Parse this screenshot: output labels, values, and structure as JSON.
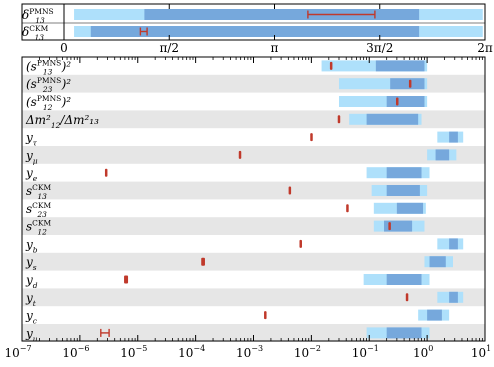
{
  "chart_data": [
    {
      "type": "range",
      "panel": "phase",
      "xlim": [
        0,
        6.2832
      ],
      "x_ticks": [
        {
          "value": 0,
          "label": "0"
        },
        {
          "value": 1.5708,
          "label": "π/2"
        },
        {
          "value": 3.1416,
          "label": "π"
        },
        {
          "value": 4.7124,
          "label": "3π/2"
        },
        {
          "value": 6.2832,
          "label": "2π"
        }
      ],
      "rows": [
        {
          "label": "δ",
          "sub": "13",
          "sup": "PMNS",
          "outer": [
            0.15,
            6.25
          ],
          "inner": [
            1.2,
            5.3
          ],
          "point": {
            "lo": 3.64,
            "hi": 4.64
          }
        },
        {
          "label": "δ",
          "sub": "13",
          "sup": "CKM",
          "outer": [
            0.15,
            6.25
          ],
          "inner": [
            0.4,
            5.3
          ],
          "point": {
            "lo": 1.14,
            "hi": 1.24
          }
        }
      ],
      "colors": {
        "outer": "#aee0fb",
        "inner": "#76a8dc",
        "point": "#c0392b",
        "band": "#e6e6e6"
      }
    },
    {
      "type": "range",
      "panel": "log",
      "xscale": "log",
      "xlim": [
        1e-07,
        10
      ],
      "x_ticks": [
        {
          "value": 1e-07,
          "label": "10",
          "exp": "−7"
        },
        {
          "value": 1e-06,
          "label": "10",
          "exp": "−6"
        },
        {
          "value": 1e-05,
          "label": "10",
          "exp": "−5"
        },
        {
          "value": 0.0001,
          "label": "10",
          "exp": "−4"
        },
        {
          "value": 0.001,
          "label": "10",
          "exp": "−3"
        },
        {
          "value": 0.01,
          "label": "10",
          "exp": "−2"
        },
        {
          "value": 0.1,
          "label": "10",
          "exp": "−1"
        },
        {
          "value": 1,
          "label": "10",
          "exp": "0"
        },
        {
          "value": 10,
          "label": "10",
          "exp": "1"
        }
      ],
      "rows": [
        {
          "label": "(s",
          "sub": "13",
          "sup": "PMNS",
          "tail": ")²",
          "outer": [
            0.015,
            1.0
          ],
          "inner": [
            0.13,
            0.9
          ],
          "point": {
            "lo": 0.021,
            "hi": 0.023
          }
        },
        {
          "label": "(s",
          "sub": "23",
          "sup": "PMNS",
          "tail": ")²",
          "outer": [
            0.03,
            1.0
          ],
          "inner": [
            0.23,
            0.9
          ],
          "point": {
            "lo": 0.49,
            "hi": 0.53
          }
        },
        {
          "label": "(s",
          "sub": "12",
          "sup": "PMNS",
          "tail": ")²",
          "outer": [
            0.03,
            1.0
          ],
          "inner": [
            0.2,
            0.9
          ],
          "point": {
            "lo": 0.29,
            "hi": 0.32
          }
        },
        {
          "label": "Δm²",
          "sub": "12",
          "sup": "",
          "tail": "/Δm²₁₃",
          "outer": [
            0.045,
            0.8
          ],
          "inner": [
            0.09,
            0.7
          ],
          "point": {
            "lo": 0.029,
            "hi": 0.031
          }
        },
        {
          "label": "y",
          "sub": "τ",
          "sup": "",
          "tail": "",
          "outer": [
            1.5,
            4.2
          ],
          "inner": [
            2.4,
            3.4
          ],
          "point": {
            "lo": 0.0098,
            "hi": 0.0103
          }
        },
        {
          "label": "y",
          "sub": "μ",
          "sup": "",
          "tail": "",
          "outer": [
            1.0,
            3.2
          ],
          "inner": [
            1.4,
            2.4
          ],
          "point": {
            "lo": 0.00057,
            "hi": 0.0006
          }
        },
        {
          "label": "y",
          "sub": "e",
          "sup": "",
          "tail": "",
          "outer": [
            0.09,
            1.1
          ],
          "inner": [
            0.2,
            0.8
          ],
          "point": {
            "lo": 2.8e-06,
            "hi": 2.9e-06
          }
        },
        {
          "label": "s",
          "sub": "13",
          "sup": "CKM",
          "tail": "",
          "outer": [
            0.11,
            1.0
          ],
          "inner": [
            0.2,
            0.75
          ],
          "point": {
            "lo": 0.0041,
            "hi": 0.0044
          }
        },
        {
          "label": "s",
          "sub": "23",
          "sup": "CKM",
          "tail": "",
          "outer": [
            0.12,
            0.95
          ],
          "inner": [
            0.3,
            0.85
          ],
          "point": {
            "lo": 0.041,
            "hi": 0.043
          }
        },
        {
          "label": "s",
          "sub": "12",
          "sup": "CKM",
          "tail": "",
          "outer": [
            0.12,
            0.9
          ],
          "inner": [
            0.18,
            0.55
          ],
          "point": {
            "lo": 0.22,
            "hi": 0.23
          }
        },
        {
          "label": "y",
          "sub": "b",
          "sup": "",
          "tail": "",
          "outer": [
            1.5,
            4.2
          ],
          "inner": [
            2.4,
            3.4
          ],
          "point": {
            "lo": 0.0064,
            "hi": 0.0067
          }
        },
        {
          "label": "y",
          "sub": "s",
          "sup": "",
          "tail": "",
          "outer": [
            0.9,
            2.8
          ],
          "inner": [
            1.1,
            2.1
          ],
          "point": {
            "lo": 0.000125,
            "hi": 0.000145
          }
        },
        {
          "label": "y",
          "sub": "d",
          "sup": "",
          "tail": "",
          "outer": [
            0.08,
            1.1
          ],
          "inner": [
            0.2,
            0.8
          ],
          "point": {
            "lo": 5.8e-06,
            "hi": 6.8e-06
          }
        },
        {
          "label": "y",
          "sub": "t",
          "sup": "",
          "tail": "",
          "outer": [
            1.5,
            4.2
          ],
          "inner": [
            2.4,
            3.4
          ],
          "point": {
            "lo": 0.44,
            "hi": 0.46
          }
        },
        {
          "label": "y",
          "sub": "c",
          "sup": "",
          "tail": "",
          "outer": [
            0.7,
            2.4
          ],
          "inner": [
            1.0,
            1.8
          ],
          "point": {
            "lo": 0.00155,
            "hi": 0.00165
          }
        },
        {
          "label": "y",
          "sub": "u",
          "sup": "",
          "tail": "",
          "outer": [
            0.09,
            1.1
          ],
          "inner": [
            0.2,
            0.8
          ],
          "point": {
            "lo": 2.3e-06,
            "hi": 3.2e-06
          }
        }
      ],
      "colors": {
        "outer": "#aee0fb",
        "inner": "#76a8dc",
        "point": "#c0392b",
        "band": "#e6e6e6"
      }
    }
  ]
}
